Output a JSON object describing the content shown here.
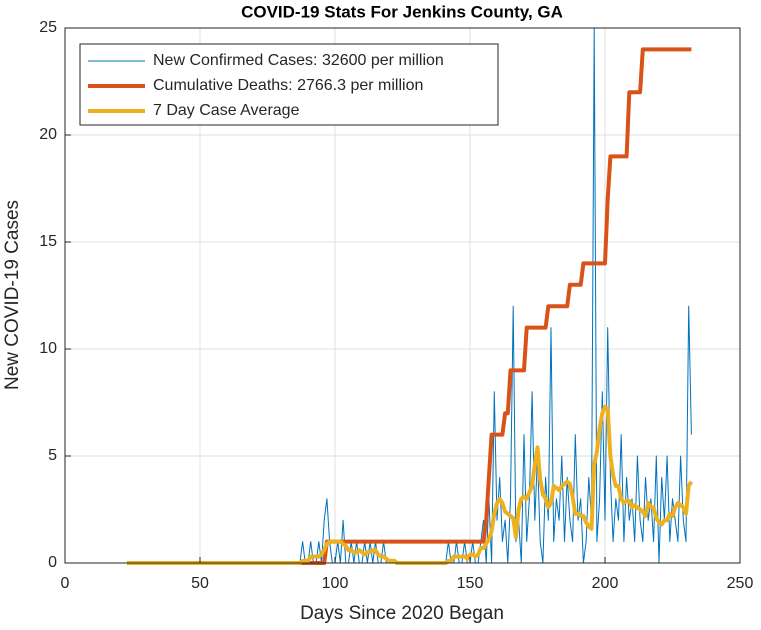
{
  "chart_data": {
    "type": "line",
    "title": "COVID-19 Stats For Jenkins County, GA",
    "xlabel": "Days Since 2020 Began",
    "ylabel": "New COVID-19 Cases",
    "xlim": [
      0,
      250
    ],
    "xticks": [
      0,
      50,
      100,
      150,
      200,
      250
    ],
    "ylim": [
      0,
      25
    ],
    "yticks": [
      0,
      5,
      10,
      15,
      20,
      25
    ],
    "grid": true,
    "legend": "upper left",
    "x": [
      23,
      24,
      25,
      26,
      27,
      28,
      29,
      30,
      31,
      32,
      33,
      34,
      35,
      36,
      37,
      38,
      39,
      40,
      41,
      42,
      43,
      44,
      45,
      46,
      47,
      48,
      49,
      50,
      51,
      52,
      53,
      54,
      55,
      56,
      57,
      58,
      59,
      60,
      61,
      62,
      63,
      64,
      65,
      66,
      67,
      68,
      69,
      70,
      71,
      72,
      73,
      74,
      75,
      76,
      77,
      78,
      79,
      80,
      81,
      82,
      83,
      84,
      85,
      86,
      87,
      88,
      89,
      90,
      91,
      92,
      93,
      94,
      95,
      96,
      97,
      98,
      99,
      100,
      101,
      102,
      103,
      104,
      105,
      106,
      107,
      108,
      109,
      110,
      111,
      112,
      113,
      114,
      115,
      116,
      117,
      118,
      119,
      120,
      121,
      122,
      123,
      124,
      125,
      126,
      127,
      128,
      129,
      130,
      131,
      132,
      133,
      134,
      135,
      136,
      137,
      138,
      139,
      140,
      141,
      142,
      143,
      144,
      145,
      146,
      147,
      148,
      149,
      150,
      151,
      152,
      153,
      154,
      155,
      156,
      157,
      158,
      159,
      160,
      161,
      162,
      163,
      164,
      165,
      166,
      167,
      168,
      169,
      170,
      171,
      172,
      173,
      174,
      175,
      176,
      177,
      178,
      179,
      180,
      181,
      182,
      183,
      184,
      185,
      186,
      187,
      188,
      189,
      190,
      191,
      192,
      193,
      194,
      195,
      196,
      197,
      198,
      199,
      200,
      201,
      202,
      203,
      204,
      205,
      206,
      207,
      208,
      209,
      210,
      211,
      212,
      213,
      214,
      215,
      216,
      217,
      218,
      219,
      220,
      221,
      222,
      223,
      224,
      225,
      226,
      227,
      228,
      229,
      230,
      231,
      232
    ],
    "series": [
      {
        "name": "New Confirmed Cases: 32600 per million",
        "color": "#0072BD",
        "width": 1,
        "values": [
          0,
          0,
          0,
          0,
          0,
          0,
          0,
          0,
          0,
          0,
          0,
          0,
          0,
          0,
          0,
          0,
          0,
          0,
          0,
          0,
          0,
          0,
          0,
          0,
          0,
          0,
          0,
          0,
          0,
          0,
          0,
          0,
          0,
          0,
          0,
          0,
          0,
          0,
          0,
          0,
          0,
          0,
          0,
          0,
          0,
          0,
          0,
          0,
          0,
          0,
          0,
          0,
          0,
          0,
          0,
          0,
          0,
          0,
          0,
          0,
          0,
          0,
          0,
          0,
          0,
          1,
          0,
          0,
          1,
          0,
          0,
          1,
          0,
          2,
          3,
          1,
          0,
          0,
          1,
          0,
          2,
          0,
          0,
          1,
          0,
          1,
          0,
          0,
          1,
          0,
          1,
          0,
          1,
          0,
          0,
          1,
          0,
          0,
          0,
          0,
          0,
          0,
          0,
          0,
          0,
          0,
          0,
          0,
          0,
          0,
          0,
          0,
          0,
          0,
          0,
          0,
          0,
          0,
          0,
          1,
          0,
          0,
          1,
          0,
          0,
          1,
          0,
          0,
          1,
          0,
          0,
          1,
          2,
          0,
          3,
          0,
          8,
          2,
          4,
          1,
          2,
          0,
          3,
          12,
          1,
          2,
          0,
          6,
          1,
          3,
          8,
          2,
          5,
          1,
          0,
          4,
          2,
          11,
          1,
          3,
          2,
          5,
          1,
          4,
          2,
          1,
          6,
          2,
          3,
          0,
          1,
          4,
          2,
          25,
          1,
          3,
          8,
          2,
          11,
          4,
          1,
          3,
          2,
          6,
          1,
          4,
          2,
          3,
          1,
          5,
          2,
          1,
          4,
          2,
          3,
          1,
          5,
          0,
          4,
          2,
          5,
          1,
          3,
          2,
          1,
          5,
          2,
          1,
          12,
          6
        ]
      },
      {
        "name": "Cumulative Deaths: 2766.3 per million",
        "color": "#D95319",
        "width": 4,
        "values": [
          0,
          0,
          0,
          0,
          0,
          0,
          0,
          0,
          0,
          0,
          0,
          0,
          0,
          0,
          0,
          0,
          0,
          0,
          0,
          0,
          0,
          0,
          0,
          0,
          0,
          0,
          0,
          0,
          0,
          0,
          0,
          0,
          0,
          0,
          0,
          0,
          0,
          0,
          0,
          0,
          0,
          0,
          0,
          0,
          0,
          0,
          0,
          0,
          0,
          0,
          0,
          0,
          0,
          0,
          0,
          0,
          0,
          0,
          0,
          0,
          0,
          0,
          0,
          0,
          0,
          0,
          0,
          0,
          0,
          0,
          0,
          0,
          0,
          0,
          1,
          1,
          1,
          1,
          1,
          1,
          1,
          1,
          1,
          1,
          1,
          1,
          1,
          1,
          1,
          1,
          1,
          1,
          1,
          1,
          1,
          1,
          1,
          1,
          1,
          1,
          1,
          1,
          1,
          1,
          1,
          1,
          1,
          1,
          1,
          1,
          1,
          1,
          1,
          1,
          1,
          1,
          1,
          1,
          1,
          1,
          1,
          1,
          1,
          1,
          1,
          1,
          1,
          1,
          1,
          1,
          1,
          1,
          1,
          2,
          4,
          6,
          6,
          6,
          6,
          6,
          7,
          7,
          9,
          9,
          9,
          9,
          9,
          9,
          11,
          11,
          11,
          11,
          11,
          11,
          11,
          11,
          12,
          12,
          12,
          12,
          12,
          12,
          12,
          12,
          13,
          13,
          13,
          13,
          13,
          14,
          14,
          14,
          14,
          14,
          14,
          14,
          14,
          14,
          17,
          19,
          19,
          19,
          19,
          19,
          19,
          19,
          22,
          22,
          22,
          22,
          22,
          24,
          24,
          24,
          24,
          24,
          24,
          24,
          24,
          24,
          24,
          24,
          24,
          24,
          24,
          24,
          24,
          24,
          24,
          24
        ]
      },
      {
        "name": "7 Day Case Average",
        "color": "#EDB120",
        "width": 4,
        "values": [
          0,
          0,
          0,
          0,
          0,
          0,
          0,
          0,
          0,
          0,
          0,
          0,
          0,
          0,
          0,
          0,
          0,
          0,
          0,
          0,
          0,
          0,
          0,
          0,
          0,
          0,
          0,
          0,
          0,
          0,
          0,
          0,
          0,
          0,
          0,
          0,
          0,
          0,
          0,
          0,
          0,
          0,
          0,
          0,
          0,
          0,
          0,
          0,
          0,
          0,
          0,
          0,
          0,
          0,
          0,
          0,
          0,
          0,
          0,
          0,
          0,
          0,
          0,
          0,
          0,
          0.1,
          0.1,
          0.1,
          0.3,
          0.3,
          0.3,
          0.3,
          0.4,
          0.6,
          0.9,
          1,
          1,
          1,
          1,
          1,
          0.9,
          0.8,
          0.6,
          0.6,
          0.5,
          0.5,
          0.6,
          0.5,
          0.4,
          0.5,
          0.5,
          0.6,
          0.6,
          0.4,
          0.3,
          0.3,
          0.2,
          0.1,
          0.1,
          0.1,
          0,
          0,
          0,
          0,
          0,
          0,
          0,
          0,
          0,
          0,
          0,
          0,
          0,
          0,
          0,
          0,
          0,
          0,
          0,
          0.1,
          0.1,
          0.3,
          0.3,
          0.3,
          0.3,
          0.3,
          0.2,
          0.4,
          0.4,
          0.3,
          0.4,
          0.7,
          0.7,
          0.9,
          1.1,
          1.5,
          2.3,
          2.8,
          3,
          2.8,
          2.4,
          2.3,
          2.2,
          2.1,
          1.2,
          2.5,
          3,
          3.1,
          3,
          3.3,
          3.6,
          4.6,
          5.4,
          3.9,
          3.2,
          3,
          2.6,
          2.8,
          3.6,
          3.5,
          3.4,
          3.6,
          3.7,
          3.8,
          3.7,
          3.1,
          2.3,
          2.3,
          2.2,
          2.2,
          1.9,
          1.7,
          1.6,
          4.6,
          5.2,
          6.3,
          7,
          7.3,
          7.2,
          5,
          4.1,
          3.6,
          3.6,
          3,
          2.8,
          2.9,
          2.9,
          2.6,
          2.7,
          2.6,
          2.5,
          2.4,
          2.2,
          2.8,
          2.6,
          2.6,
          2.1,
          1.9,
          1.8,
          2,
          2,
          2.3,
          2.2,
          2.6,
          2.8,
          2.7,
          2.6,
          2.3,
          3.6,
          3.8
        ]
      }
    ]
  }
}
